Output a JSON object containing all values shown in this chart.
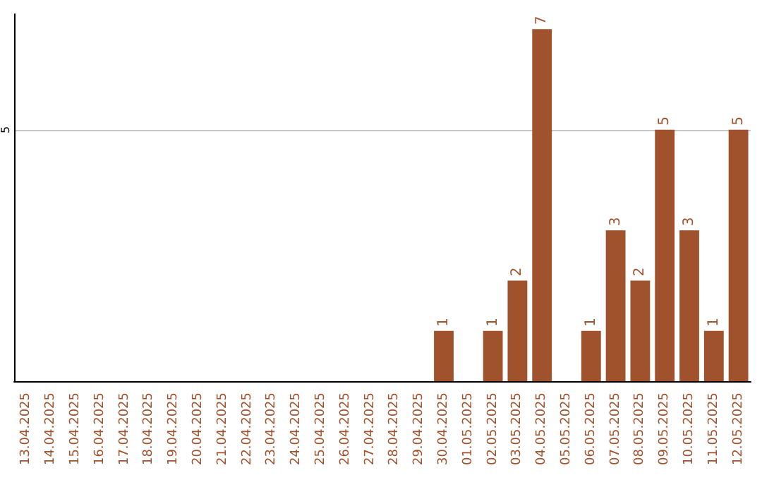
{
  "chart_data": {
    "type": "bar",
    "categories": [
      "13.04.2025",
      "14.04.2025",
      "15.04.2025",
      "16.04.2025",
      "17.04.2025",
      "18.04.2025",
      "19.04.2025",
      "20.04.2025",
      "21.04.2025",
      "22.04.2025",
      "23.04.2025",
      "24.04.2025",
      "25.04.2025",
      "26.04.2025",
      "27.04.2025",
      "28.04.2025",
      "29.04.2025",
      "30.04.2025",
      "01.05.2025",
      "02.05.2025",
      "03.05.2025",
      "04.05.2025",
      "05.05.2025",
      "06.05.2025",
      "07.05.2025",
      "08.05.2025",
      "09.05.2025",
      "10.05.2025",
      "11.05.2025",
      "12.05.2025"
    ],
    "values": [
      null,
      null,
      null,
      null,
      null,
      null,
      null,
      null,
      null,
      null,
      null,
      null,
      null,
      null,
      null,
      null,
      null,
      1,
      null,
      1,
      2,
      7,
      null,
      1,
      3,
      2,
      5,
      3,
      1,
      5
    ],
    "color": "#a0522d",
    "ylim": [
      0,
      7.3
    ],
    "yticks": [
      5
    ],
    "grid": "y",
    "data_labels": true
  }
}
